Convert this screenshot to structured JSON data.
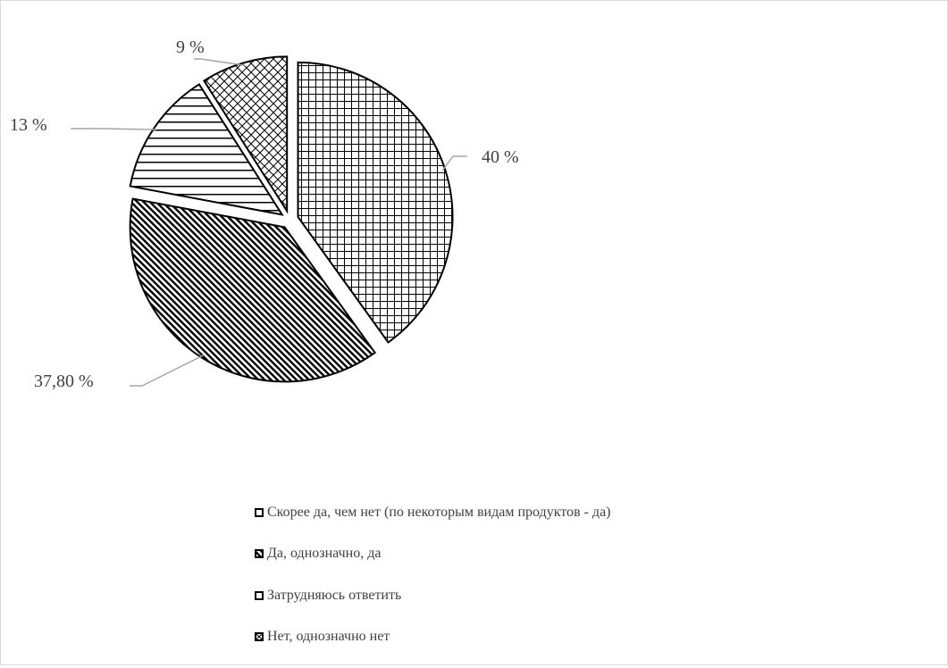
{
  "chart_data": {
    "type": "pie",
    "categories": [
      "Скорее да, чем нет (по некоторым видам продуктов - да)",
      "Да, однозначно, да",
      "Затрудняюсь ответить",
      "Нет, однозначно нет"
    ],
    "values": [
      40,
      37.8,
      13,
      9
    ],
    "labels": [
      "40 %",
      "37,80 %",
      "13 %",
      "9 %"
    ],
    "patterns": [
      "grid",
      "diagonal-dense",
      "horizontal",
      "diagonal-cross"
    ],
    "colors": {
      "stroke": "#000000",
      "fill": "#ffffff",
      "label": "#404040",
      "leader": "#a6a6a6"
    },
    "legend_position": "bottom",
    "exploded": true
  }
}
